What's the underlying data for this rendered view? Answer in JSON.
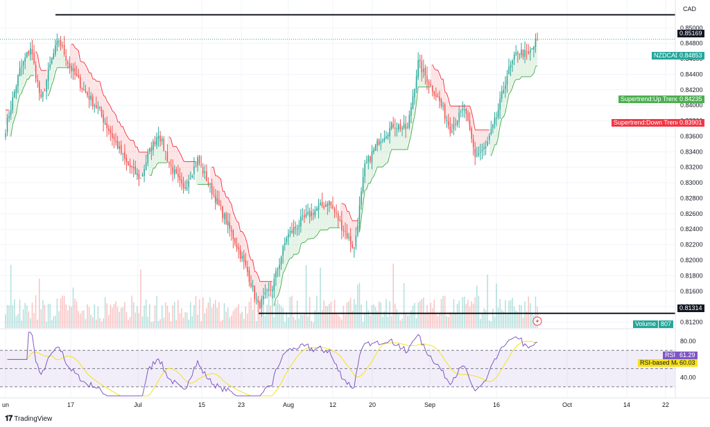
{
  "currency": "CAD",
  "brand": "TradingView",
  "colors": {
    "up_candle": "#26a69a",
    "down_candle": "#ef5350",
    "supertrend_up": "#4caf50",
    "supertrend_down": "#f23645",
    "rsi": "#7e57c2",
    "rsi_ma": "#f5e11c"
  },
  "chart_data": [
    {
      "type": "candlestick",
      "symbol": "NZDCAD",
      "x_ticks": [
        "un",
        "17",
        "Jul",
        "15",
        "23",
        "Aug",
        "12",
        "20",
        "Sep",
        "16",
        "Oct",
        "14",
        "22"
      ],
      "y_ticks": [
        "0.81200",
        "0.81400",
        "0.81600",
        "0.81800",
        "0.82000",
        "0.82200",
        "0.82400",
        "0.82600",
        "0.82800",
        "0.83000",
        "0.83200",
        "0.83400",
        "0.83600",
        "0.83800",
        "0.84000",
        "0.84200",
        "0.84400",
        "0.84600",
        "0.84800",
        "0.85000"
      ],
      "ylim": [
        0.8116,
        0.8536
      ],
      "horizontal_lines": [
        {
          "label": "0.85169",
          "value": 0.85169
        },
        {
          "label": "0.81314",
          "value": 0.81314
        }
      ],
      "last_price": {
        "label": "NZDCAD",
        "value": "0.84853"
      },
      "supertrend_up": {
        "label": "Supertrend:Up Trend",
        "value": "0.84235"
      },
      "supertrend_down": {
        "label": "Supertrend:Down Trend",
        "value": "0.83901"
      },
      "volume": {
        "label": "Volume",
        "value": "807"
      },
      "path_points": [
        {
          "i": 0,
          "v": 0.837
        },
        {
          "i": 8,
          "v": 0.8445
        },
        {
          "i": 14,
          "v": 0.8475
        },
        {
          "i": 20,
          "v": 0.8405
        },
        {
          "i": 26,
          "v": 0.846
        },
        {
          "i": 30,
          "v": 0.8485
        },
        {
          "i": 36,
          "v": 0.845
        },
        {
          "i": 44,
          "v": 0.842
        },
        {
          "i": 52,
          "v": 0.8395
        },
        {
          "i": 60,
          "v": 0.836
        },
        {
          "i": 68,
          "v": 0.8325
        },
        {
          "i": 76,
          "v": 0.8305
        },
        {
          "i": 80,
          "v": 0.8335
        },
        {
          "i": 86,
          "v": 0.8365
        },
        {
          "i": 92,
          "v": 0.8325
        },
        {
          "i": 100,
          "v": 0.829
        },
        {
          "i": 108,
          "v": 0.833
        },
        {
          "i": 118,
          "v": 0.828
        },
        {
          "i": 128,
          "v": 0.823
        },
        {
          "i": 136,
          "v": 0.8185
        },
        {
          "i": 142,
          "v": 0.814
        },
        {
          "i": 150,
          "v": 0.8165
        },
        {
          "i": 158,
          "v": 0.823
        },
        {
          "i": 166,
          "v": 0.825
        },
        {
          "i": 174,
          "v": 0.8265
        },
        {
          "i": 182,
          "v": 0.8275
        },
        {
          "i": 190,
          "v": 0.824
        },
        {
          "i": 196,
          "v": 0.8215
        },
        {
          "i": 202,
          "v": 0.832
        },
        {
          "i": 210,
          "v": 0.8355
        },
        {
          "i": 218,
          "v": 0.8375
        },
        {
          "i": 226,
          "v": 0.837
        },
        {
          "i": 232,
          "v": 0.8455
        },
        {
          "i": 238,
          "v": 0.843
        },
        {
          "i": 244,
          "v": 0.8405
        },
        {
          "i": 250,
          "v": 0.837
        },
        {
          "i": 258,
          "v": 0.8395
        },
        {
          "i": 264,
          "v": 0.8335
        },
        {
          "i": 270,
          "v": 0.8345
        },
        {
          "i": 276,
          "v": 0.8385
        },
        {
          "i": 282,
          "v": 0.844
        },
        {
          "i": 288,
          "v": 0.847
        },
        {
          "i": 294,
          "v": 0.8465
        },
        {
          "i": 299,
          "v": 0.8485
        }
      ],
      "n_candles": 300
    },
    {
      "type": "line",
      "name": "RSI",
      "y_ticks": [
        "80.00",
        "40.00"
      ],
      "ylim": [
        20,
        90
      ],
      "bands": [
        70,
        50,
        30
      ],
      "rsi": {
        "label": "RSI",
        "value": "61.29"
      },
      "rsi_ma": {
        "label": "RSI-based MA",
        "value": "60.03"
      }
    }
  ]
}
